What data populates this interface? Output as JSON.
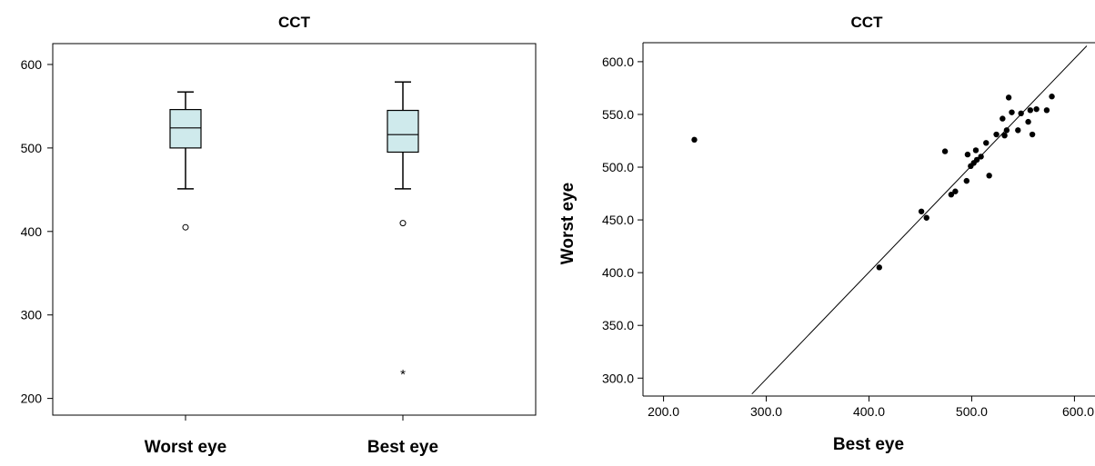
{
  "chart_data": [
    {
      "type": "box",
      "title": "CCT",
      "xlabel": "",
      "ylabel": "",
      "ylim": [
        180,
        625
      ],
      "yticks": [
        200,
        300,
        400,
        500,
        600
      ],
      "categories": [
        "Worst eye",
        "Best eye"
      ],
      "box_color": "#cfeaec",
      "boxes": [
        {
          "category": "Worst eye",
          "whisker_low": 451,
          "q1": 500,
          "median": 524,
          "q3": 546,
          "whisker_high": 567,
          "outliers": [
            405
          ],
          "extremes": []
        },
        {
          "category": "Best eye",
          "whisker_low": 451,
          "q1": 495,
          "median": 516,
          "q3": 545,
          "whisker_high": 579,
          "outliers": [
            410
          ],
          "extremes": [
            230
          ]
        }
      ]
    },
    {
      "type": "scatter",
      "title": "CCT",
      "xlabel": "Best eye",
      "ylabel": "Worst eye",
      "xlim": [
        180,
        620
      ],
      "ylim": [
        283,
        618
      ],
      "xticks": [
        "200.0",
        "300.0",
        "400.0",
        "500.0",
        "600.0"
      ],
      "yticks": [
        "300.0",
        "350.0",
        "400.0",
        "450.0",
        "500.0",
        "550.0",
        "600.0"
      ],
      "points": [
        {
          "x": 230,
          "y": 526
        },
        {
          "x": 410,
          "y": 405
        },
        {
          "x": 451,
          "y": 458
        },
        {
          "x": 456,
          "y": 452
        },
        {
          "x": 474,
          "y": 515
        },
        {
          "x": 480,
          "y": 474
        },
        {
          "x": 484,
          "y": 477
        },
        {
          "x": 495,
          "y": 487
        },
        {
          "x": 496,
          "y": 512
        },
        {
          "x": 499,
          "y": 501
        },
        {
          "x": 502,
          "y": 504
        },
        {
          "x": 504,
          "y": 516
        },
        {
          "x": 505,
          "y": 507
        },
        {
          "x": 509,
          "y": 510
        },
        {
          "x": 514,
          "y": 523
        },
        {
          "x": 517,
          "y": 492
        },
        {
          "x": 524,
          "y": 531
        },
        {
          "x": 530,
          "y": 546
        },
        {
          "x": 532,
          "y": 530
        },
        {
          "x": 534,
          "y": 535
        },
        {
          "x": 536,
          "y": 566
        },
        {
          "x": 539,
          "y": 552
        },
        {
          "x": 545,
          "y": 535
        },
        {
          "x": 548,
          "y": 551
        },
        {
          "x": 555,
          "y": 543
        },
        {
          "x": 557,
          "y": 554
        },
        {
          "x": 559,
          "y": 531
        },
        {
          "x": 563,
          "y": 555
        },
        {
          "x": 573,
          "y": 554
        },
        {
          "x": 578,
          "y": 567
        }
      ],
      "fit_line": {
        "x1": 286,
        "y1": 285,
        "x2": 612,
        "y2": 615
      },
      "grid": false
    }
  ]
}
